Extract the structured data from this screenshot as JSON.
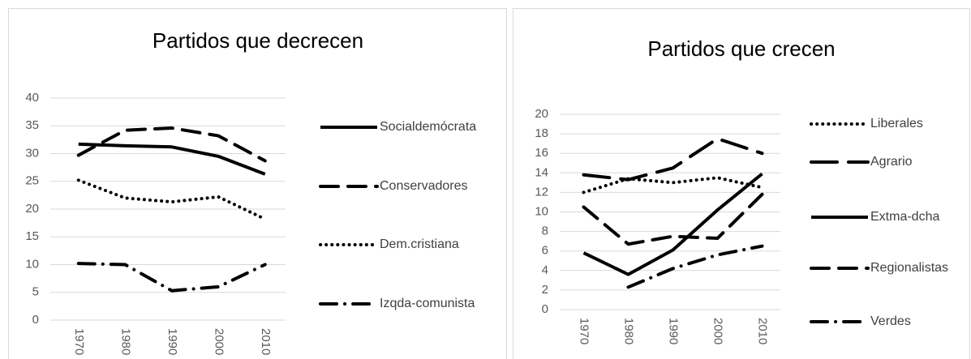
{
  "chart_data": [
    {
      "type": "line",
      "title": "Partidos que decrecen",
      "categories": [
        "1970",
        "1980",
        "1990",
        "2000",
        "2010"
      ],
      "ylim": [
        0,
        40
      ],
      "yticks": [
        0,
        5,
        10,
        15,
        20,
        25,
        30,
        35,
        40
      ],
      "grid": true,
      "legend": "right",
      "series": [
        {
          "name": "Socialdemócrata",
          "color": "#000000",
          "style": "solid",
          "values": [
            31.7,
            31.4,
            31.2,
            29.5,
            26.3
          ]
        },
        {
          "name": "Conservadores",
          "color": "#000000",
          "style": "dashed",
          "values": [
            29.7,
            34.2,
            34.6,
            33.2,
            28.7
          ]
        },
        {
          "name": "Dem.cristiana",
          "color": "#000000",
          "style": "dotted",
          "values": [
            25.2,
            22,
            21.3,
            22.2,
            18.2
          ]
        },
        {
          "name": "Izqda-comunista",
          "color": "#000000",
          "style": "dashdot",
          "values": [
            10.2,
            10,
            5.3,
            6,
            10
          ]
        }
      ]
    },
    {
      "type": "line",
      "title": "Partidos que crecen",
      "categories": [
        "1970",
        "1980",
        "1990",
        "2000",
        "2010"
      ],
      "ylim": [
        0,
        20
      ],
      "yticks": [
        0,
        2,
        4,
        6,
        8,
        10,
        12,
        14,
        16,
        18,
        20
      ],
      "grid": true,
      "legend": "right",
      "series": [
        {
          "name": "Liberales",
          "color": "#000000",
          "style": "dotted",
          "values": [
            12,
            13.4,
            13,
            13.5,
            12.5
          ]
        },
        {
          "name": "Agrario",
          "color": "#000000",
          "style": "longdash",
          "values": [
            13.8,
            13.3,
            14.5,
            17.5,
            16
          ]
        },
        {
          "name": "Extma-dcha",
          "color": "#000000",
          "style": "solid",
          "values": [
            5.8,
            3.6,
            6.1,
            10.2,
            13.9
          ]
        },
        {
          "name": "Regionalistas",
          "color": "#000000",
          "style": "dashed",
          "values": [
            10.5,
            6.7,
            7.5,
            7.3,
            11.8
          ]
        },
        {
          "name": "Verdes",
          "color": "#000000",
          "style": "dashdot",
          "values": [
            null,
            2.3,
            4.2,
            5.6,
            6.5
          ]
        }
      ]
    }
  ]
}
